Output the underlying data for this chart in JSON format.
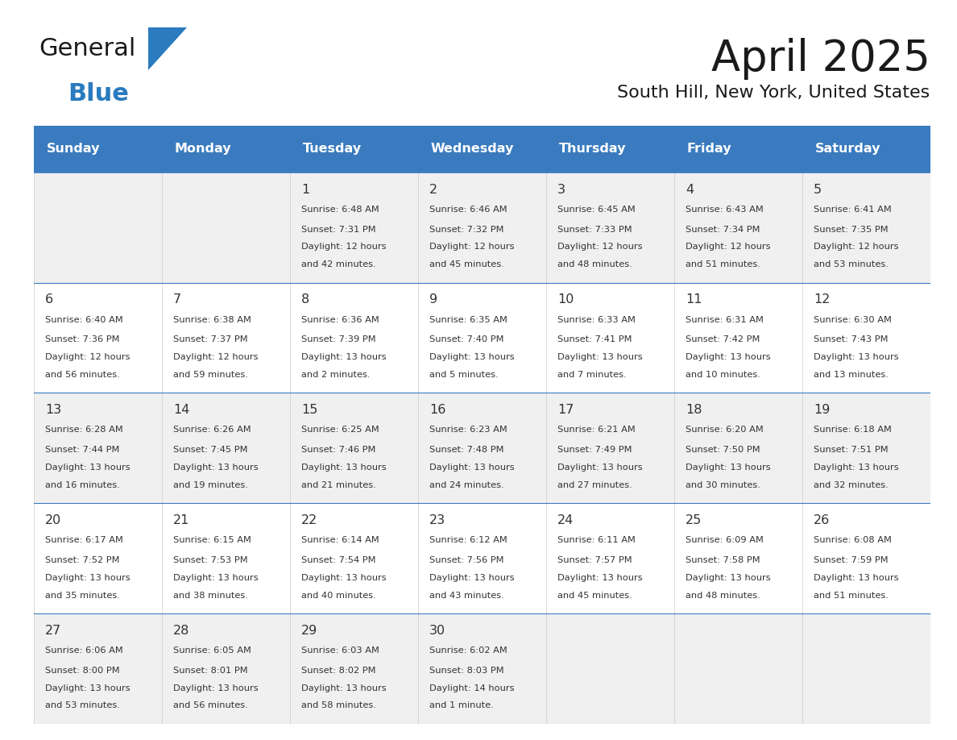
{
  "title": "April 2025",
  "subtitle": "South Hill, New York, United States",
  "header_bg_color": "#3a7bbf",
  "header_text_color": "#ffffff",
  "row_bg_colors": [
    "#f0f0f0",
    "#ffffff",
    "#f0f0f0",
    "#ffffff",
    "#f0f0f0"
  ],
  "border_color": "#3a7bbf",
  "text_color": "#333333",
  "day_names": [
    "Sunday",
    "Monday",
    "Tuesday",
    "Wednesday",
    "Thursday",
    "Friday",
    "Saturday"
  ],
  "days": [
    {
      "date": 1,
      "col": 2,
      "row": 0,
      "sunrise": "6:48 AM",
      "sunset": "7:31 PM",
      "daylight_h": "12 hours",
      "daylight_m": "42 minutes."
    },
    {
      "date": 2,
      "col": 3,
      "row": 0,
      "sunrise": "6:46 AM",
      "sunset": "7:32 PM",
      "daylight_h": "12 hours",
      "daylight_m": "45 minutes."
    },
    {
      "date": 3,
      "col": 4,
      "row": 0,
      "sunrise": "6:45 AM",
      "sunset": "7:33 PM",
      "daylight_h": "12 hours",
      "daylight_m": "48 minutes."
    },
    {
      "date": 4,
      "col": 5,
      "row": 0,
      "sunrise": "6:43 AM",
      "sunset": "7:34 PM",
      "daylight_h": "12 hours",
      "daylight_m": "51 minutes."
    },
    {
      "date": 5,
      "col": 6,
      "row": 0,
      "sunrise": "6:41 AM",
      "sunset": "7:35 PM",
      "daylight_h": "12 hours",
      "daylight_m": "53 minutes."
    },
    {
      "date": 6,
      "col": 0,
      "row": 1,
      "sunrise": "6:40 AM",
      "sunset": "7:36 PM",
      "daylight_h": "12 hours",
      "daylight_m": "56 minutes."
    },
    {
      "date": 7,
      "col": 1,
      "row": 1,
      "sunrise": "6:38 AM",
      "sunset": "7:37 PM",
      "daylight_h": "12 hours",
      "daylight_m": "59 minutes."
    },
    {
      "date": 8,
      "col": 2,
      "row": 1,
      "sunrise": "6:36 AM",
      "sunset": "7:39 PM",
      "daylight_h": "13 hours",
      "daylight_m": "2 minutes."
    },
    {
      "date": 9,
      "col": 3,
      "row": 1,
      "sunrise": "6:35 AM",
      "sunset": "7:40 PM",
      "daylight_h": "13 hours",
      "daylight_m": "5 minutes."
    },
    {
      "date": 10,
      "col": 4,
      "row": 1,
      "sunrise": "6:33 AM",
      "sunset": "7:41 PM",
      "daylight_h": "13 hours",
      "daylight_m": "7 minutes."
    },
    {
      "date": 11,
      "col": 5,
      "row": 1,
      "sunrise": "6:31 AM",
      "sunset": "7:42 PM",
      "daylight_h": "13 hours",
      "daylight_m": "10 minutes."
    },
    {
      "date": 12,
      "col": 6,
      "row": 1,
      "sunrise": "6:30 AM",
      "sunset": "7:43 PM",
      "daylight_h": "13 hours",
      "daylight_m": "13 minutes."
    },
    {
      "date": 13,
      "col": 0,
      "row": 2,
      "sunrise": "6:28 AM",
      "sunset": "7:44 PM",
      "daylight_h": "13 hours",
      "daylight_m": "16 minutes."
    },
    {
      "date": 14,
      "col": 1,
      "row": 2,
      "sunrise": "6:26 AM",
      "sunset": "7:45 PM",
      "daylight_h": "13 hours",
      "daylight_m": "19 minutes."
    },
    {
      "date": 15,
      "col": 2,
      "row": 2,
      "sunrise": "6:25 AM",
      "sunset": "7:46 PM",
      "daylight_h": "13 hours",
      "daylight_m": "21 minutes."
    },
    {
      "date": 16,
      "col": 3,
      "row": 2,
      "sunrise": "6:23 AM",
      "sunset": "7:48 PM",
      "daylight_h": "13 hours",
      "daylight_m": "24 minutes."
    },
    {
      "date": 17,
      "col": 4,
      "row": 2,
      "sunrise": "6:21 AM",
      "sunset": "7:49 PM",
      "daylight_h": "13 hours",
      "daylight_m": "27 minutes."
    },
    {
      "date": 18,
      "col": 5,
      "row": 2,
      "sunrise": "6:20 AM",
      "sunset": "7:50 PM",
      "daylight_h": "13 hours",
      "daylight_m": "30 minutes."
    },
    {
      "date": 19,
      "col": 6,
      "row": 2,
      "sunrise": "6:18 AM",
      "sunset": "7:51 PM",
      "daylight_h": "13 hours",
      "daylight_m": "32 minutes."
    },
    {
      "date": 20,
      "col": 0,
      "row": 3,
      "sunrise": "6:17 AM",
      "sunset": "7:52 PM",
      "daylight_h": "13 hours",
      "daylight_m": "35 minutes."
    },
    {
      "date": 21,
      "col": 1,
      "row": 3,
      "sunrise": "6:15 AM",
      "sunset": "7:53 PM",
      "daylight_h": "13 hours",
      "daylight_m": "38 minutes."
    },
    {
      "date": 22,
      "col": 2,
      "row": 3,
      "sunrise": "6:14 AM",
      "sunset": "7:54 PM",
      "daylight_h": "13 hours",
      "daylight_m": "40 minutes."
    },
    {
      "date": 23,
      "col": 3,
      "row": 3,
      "sunrise": "6:12 AM",
      "sunset": "7:56 PM",
      "daylight_h": "13 hours",
      "daylight_m": "43 minutes."
    },
    {
      "date": 24,
      "col": 4,
      "row": 3,
      "sunrise": "6:11 AM",
      "sunset": "7:57 PM",
      "daylight_h": "13 hours",
      "daylight_m": "45 minutes."
    },
    {
      "date": 25,
      "col": 5,
      "row": 3,
      "sunrise": "6:09 AM",
      "sunset": "7:58 PM",
      "daylight_h": "13 hours",
      "daylight_m": "48 minutes."
    },
    {
      "date": 26,
      "col": 6,
      "row": 3,
      "sunrise": "6:08 AM",
      "sunset": "7:59 PM",
      "daylight_h": "13 hours",
      "daylight_m": "51 minutes."
    },
    {
      "date": 27,
      "col": 0,
      "row": 4,
      "sunrise": "6:06 AM",
      "sunset": "8:00 PM",
      "daylight_h": "13 hours",
      "daylight_m": "53 minutes."
    },
    {
      "date": 28,
      "col": 1,
      "row": 4,
      "sunrise": "6:05 AM",
      "sunset": "8:01 PM",
      "daylight_h": "13 hours",
      "daylight_m": "56 minutes."
    },
    {
      "date": 29,
      "col": 2,
      "row": 4,
      "sunrise": "6:03 AM",
      "sunset": "8:02 PM",
      "daylight_h": "13 hours",
      "daylight_m": "58 minutes."
    },
    {
      "date": 30,
      "col": 3,
      "row": 4,
      "sunrise": "6:02 AM",
      "sunset": "8:03 PM",
      "daylight_h": "14 hours",
      "daylight_m": "1 minute."
    }
  ],
  "num_rows": 5,
  "num_cols": 7,
  "logo_general_color": "#1a1a1a",
  "logo_blue_color": "#2a7bbf",
  "logo_triangle_color": "#2a7bbf",
  "title_color": "#1a1a1a",
  "subtitle_color": "#1a1a1a"
}
